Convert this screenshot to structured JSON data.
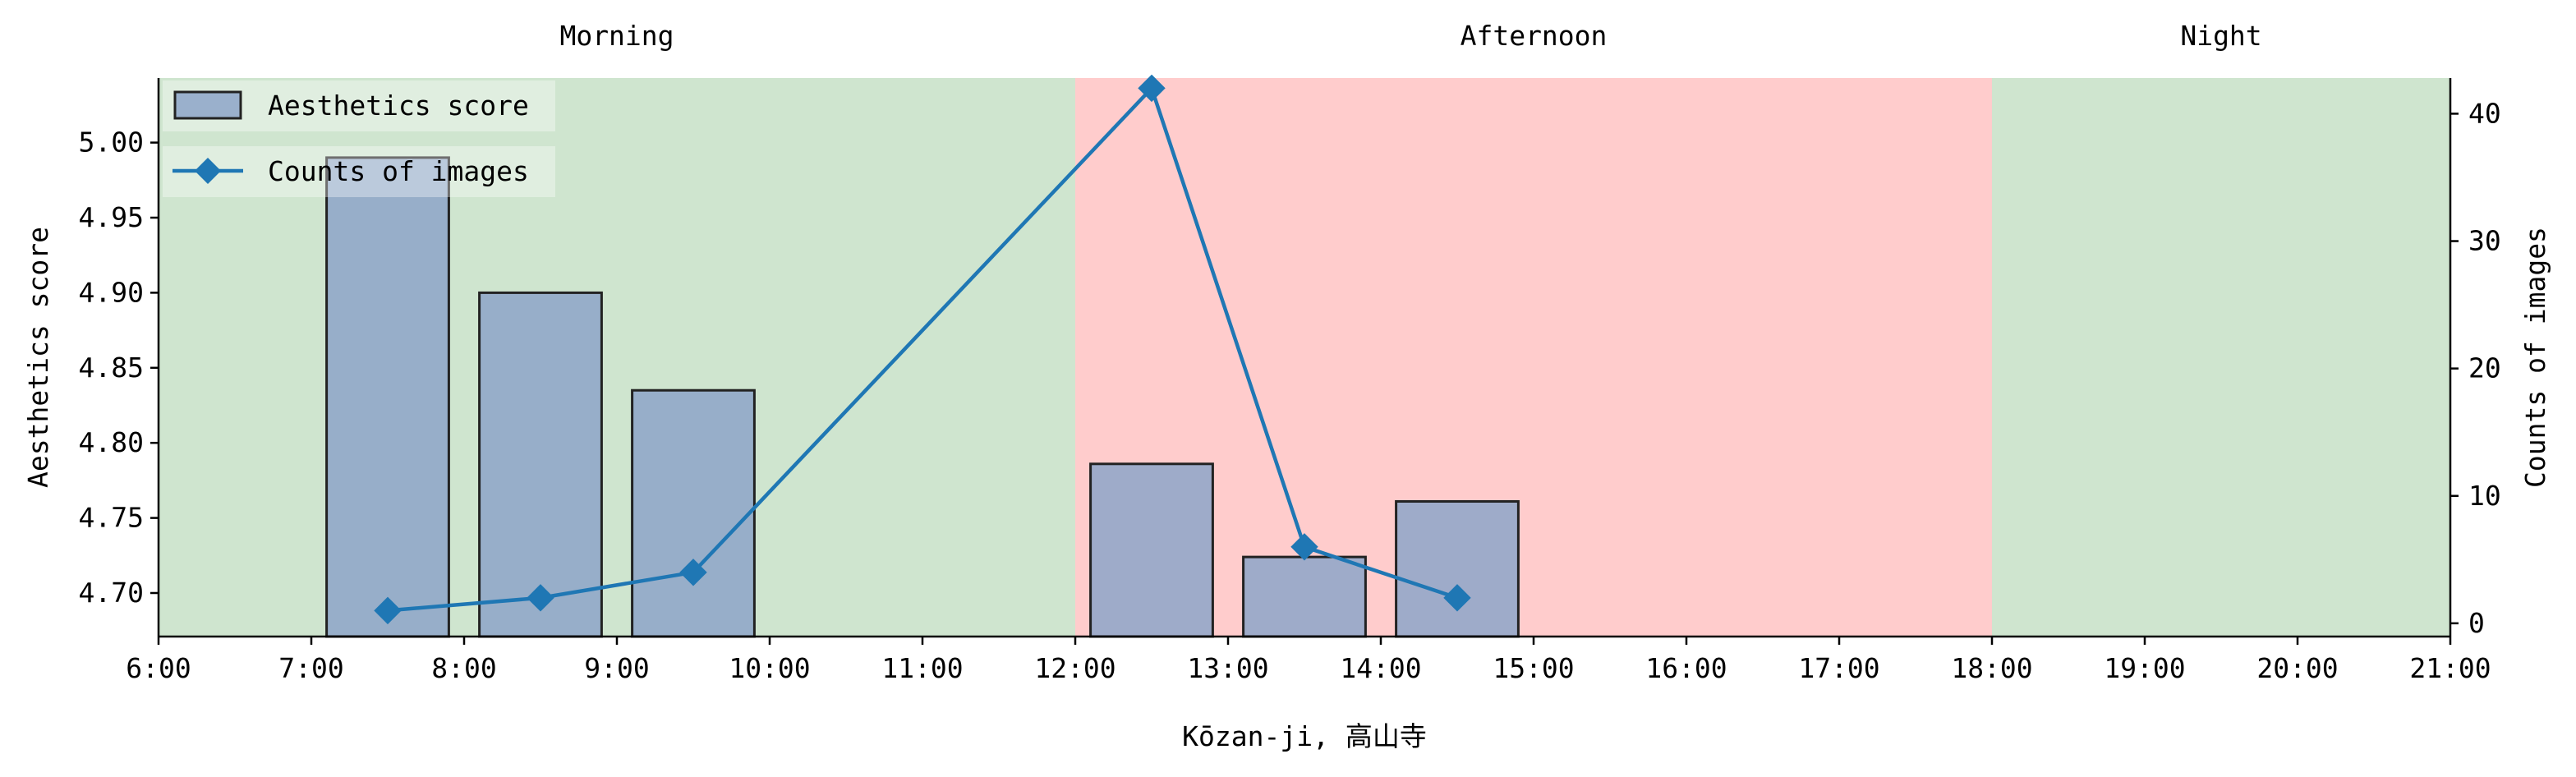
{
  "chart_data": {
    "type": "bar+line",
    "xlabel": "Kōzan-ji, 高山寺",
    "x_ticks": [
      "6:00",
      "7:00",
      "8:00",
      "9:00",
      "10:00",
      "11:00",
      "12:00",
      "13:00",
      "14:00",
      "15:00",
      "16:00",
      "17:00",
      "18:00",
      "19:00",
      "20:00",
      "21:00"
    ],
    "xlim": [
      6,
      21
    ],
    "periods": [
      {
        "label": "Morning",
        "start": 6,
        "end": 12,
        "color": "#cfe5cf"
      },
      {
        "label": "Afternoon",
        "start": 12,
        "end": 18,
        "color": "#ffcccc"
      },
      {
        "label": "Night",
        "start": 18,
        "end": 21,
        "color": "#cfe5cf"
      }
    ],
    "bars": {
      "name": "Aesthetics score",
      "x": [
        7.5,
        8.5,
        9.5,
        12.5,
        13.5,
        14.5
      ],
      "values": [
        4.99,
        4.9,
        4.835,
        4.786,
        4.724,
        4.761
      ],
      "color": "#8da5c8",
      "edge_color": "#222222"
    },
    "line": {
      "name": "Counts of images",
      "x": [
        7.5,
        8.5,
        9.5,
        12.5,
        13.5,
        14.5
      ],
      "values": [
        1,
        2,
        4,
        42,
        6,
        2
      ],
      "color": "#1f77b4",
      "marker": "diamond"
    },
    "y_left": {
      "label": "Aesthetics score",
      "ylim": [
        4.671,
        5.043
      ],
      "ticks": [
        "4.70",
        "4.75",
        "4.80",
        "4.85",
        "4.90",
        "4.95",
        "5.00"
      ]
    },
    "y_right": {
      "label": "Counts of images",
      "ylim": [
        -1.04,
        42.8
      ],
      "ticks": [
        "0",
        "10",
        "20",
        "30",
        "40"
      ]
    },
    "legend_position": "upper-left",
    "grid": false
  }
}
